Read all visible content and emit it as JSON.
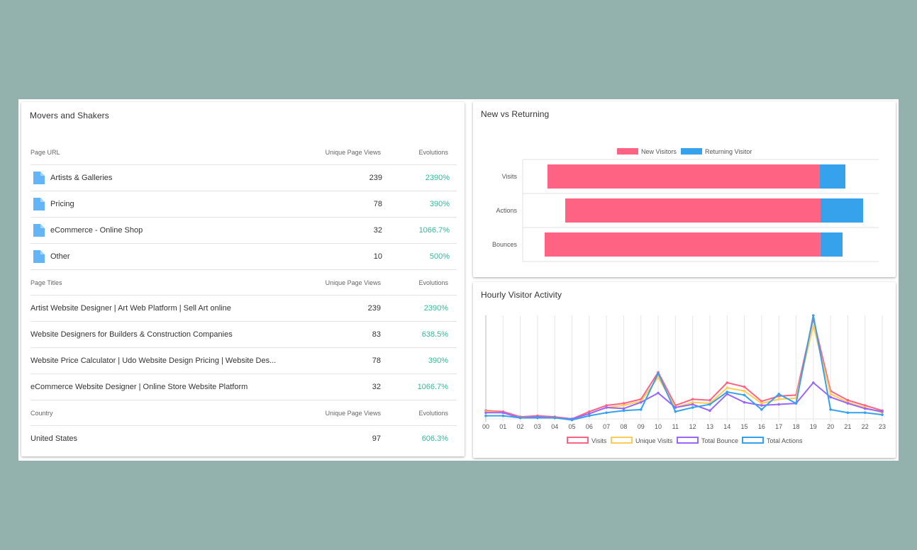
{
  "movers": {
    "title": "Movers and Shakers",
    "sections": [
      {
        "headers": [
          "Page URL",
          "Unique Page Views",
          "Evolutions"
        ],
        "icon": "file-icon",
        "rows": [
          {
            "label": "Artists & Galleries",
            "views": "239",
            "evolution": "2390%"
          },
          {
            "label": "Pricing",
            "views": "78",
            "evolution": "390%"
          },
          {
            "label": "eCommerce - Online Shop",
            "views": "32",
            "evolution": "1066.7%"
          },
          {
            "label": "Other",
            "views": "10",
            "evolution": "500%"
          }
        ]
      },
      {
        "headers": [
          "Page Titles",
          "Unique Page Views",
          "Evolutions"
        ],
        "rows": [
          {
            "label": "Artist Website Designer | Art Web Platform | Sell Art online",
            "views": "239",
            "evolution": "2390%"
          },
          {
            "label": "Website Designers for Builders & Construction Companies",
            "views": "83",
            "evolution": "638.5%"
          },
          {
            "label": "Website Price Calculator | Udo Website Design Pricing | Website Des...",
            "views": "78",
            "evolution": "390%"
          },
          {
            "label": "eCommerce Website Designer | Online Store Website Platform",
            "views": "32",
            "evolution": "1066.7%"
          }
        ]
      },
      {
        "headers": [
          "Country",
          "Unique Page Views",
          "Evolutions"
        ],
        "rows": [
          {
            "label": "United States",
            "views": "97",
            "evolution": "606.3%"
          }
        ]
      }
    ],
    "evolution_color": "#2bbd9b",
    "icon_color": "#64b5f6"
  },
  "new_vs_returning": {
    "title": "New vs Returning",
    "chart_data": {
      "type": "bar",
      "orientation": "horizontal",
      "stacked": true,
      "categories": [
        "Visits",
        "Actions",
        "Bounces"
      ],
      "series": [
        {
          "name": "New Visitors",
          "color": "#ff6384",
          "values": [
            80,
            75,
            81
          ]
        },
        {
          "name": "Returning Visitor",
          "color": "#36a2eb",
          "values": [
            7.5,
            12.5,
            6.5
          ]
        }
      ],
      "offsets": [
        -95,
        -90,
        -96
      ],
      "legend": "top",
      "grid": true
    }
  },
  "hourly": {
    "title": "Hourly Visitor Activity",
    "chart_data": {
      "type": "line",
      "x": [
        "00",
        "01",
        "02",
        "03",
        "04",
        "05",
        "06",
        "07",
        "08",
        "09",
        "10",
        "11",
        "12",
        "13",
        "14",
        "15",
        "16",
        "17",
        "18",
        "19",
        "20",
        "21",
        "22",
        "23"
      ],
      "ylim": [
        0,
        100
      ],
      "series": [
        {
          "name": "Visits",
          "color": "#ff6384",
          "values": [
            8,
            7,
            2,
            3,
            2,
            0,
            7,
            13,
            15,
            19,
            45,
            13,
            19,
            18,
            35,
            31,
            17,
            22,
            23,
            97,
            27,
            18,
            13,
            8
          ]
        },
        {
          "name": "Unique Visits",
          "color": "#ffcd56",
          "values": [
            7,
            6,
            1,
            2,
            1,
            0,
            5,
            11,
            13,
            17,
            40,
            11,
            16,
            15,
            30,
            27,
            15,
            19,
            20,
            90,
            24,
            16,
            11,
            6
          ]
        },
        {
          "name": "Total Bounce",
          "color": "#9966ff",
          "values": [
            6,
            6,
            1,
            2,
            1,
            0,
            5,
            11,
            10,
            16,
            25,
            11,
            14,
            8,
            24,
            16,
            13,
            14,
            15,
            35,
            21,
            15,
            10,
            7
          ]
        },
        {
          "name": "Total Actions",
          "color": "#36a2eb",
          "values": [
            3,
            3,
            1,
            1,
            1,
            -1,
            3,
            6,
            8,
            9,
            44,
            7,
            11,
            14,
            26,
            23,
            9,
            24,
            15,
            100,
            9,
            6,
            6,
            4
          ]
        }
      ],
      "legend": "bottom",
      "grid": true
    }
  }
}
